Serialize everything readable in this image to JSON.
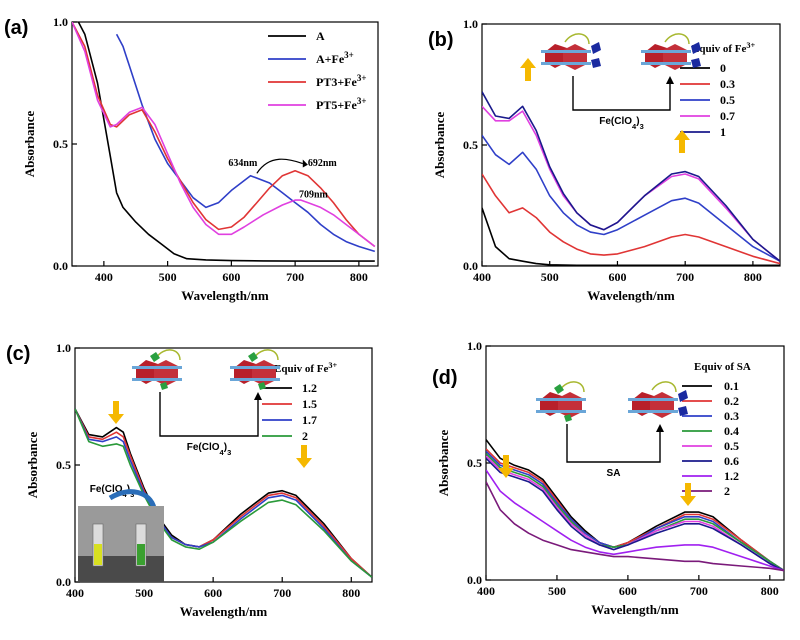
{
  "figure": {
    "panels": [
      "(a)",
      "(b)",
      "(c)",
      "(d)"
    ],
    "arrow_color": "#f5b800"
  },
  "chart_data": [
    {
      "type": "line",
      "panel": "(a)",
      "xlabel": "Wavelength/nm",
      "ylabel": "Absorbance",
      "xlim": [
        350,
        830
      ],
      "ylim": [
        0,
        1.0
      ],
      "xticks": [
        400,
        500,
        600,
        700,
        800
      ],
      "yticks": [
        0.0,
        0.5,
        1.0
      ],
      "legend_position": "top-right",
      "annotations": [
        "634nm",
        "692nm",
        "709nm"
      ],
      "series": [
        {
          "name": "A",
          "color": "#000000",
          "x": [
            350,
            370,
            390,
            410,
            420,
            430,
            450,
            470,
            490,
            510,
            530,
            560,
            600,
            650,
            700,
            750,
            800,
            825
          ],
          "y": [
            1.05,
            0.95,
            0.75,
            0.45,
            0.3,
            0.24,
            0.18,
            0.13,
            0.09,
            0.05,
            0.03,
            0.025,
            0.022,
            0.021,
            0.02,
            0.02,
            0.02,
            0.02
          ]
        },
        {
          "name": "A+Fe3+",
          "color": "#2f3fc8",
          "x": [
            420,
            430,
            440,
            460,
            480,
            500,
            520,
            540,
            560,
            580,
            600,
            630,
            660,
            680,
            700,
            720,
            740,
            760,
            780,
            800,
            825
          ],
          "y": [
            0.95,
            0.9,
            0.82,
            0.66,
            0.52,
            0.42,
            0.35,
            0.28,
            0.24,
            0.26,
            0.31,
            0.37,
            0.34,
            0.3,
            0.26,
            0.22,
            0.17,
            0.13,
            0.1,
            0.08,
            0.06
          ]
        },
        {
          "name": "PT3+Fe3+",
          "color": "#e03535",
          "x": [
            350,
            370,
            390,
            410,
            420,
            440,
            460,
            480,
            500,
            520,
            540,
            560,
            580,
            600,
            620,
            640,
            660,
            680,
            690,
            700,
            720,
            740,
            760,
            780,
            800,
            825
          ],
          "y": [
            1.0,
            0.9,
            0.7,
            0.58,
            0.57,
            0.62,
            0.64,
            0.55,
            0.44,
            0.35,
            0.26,
            0.19,
            0.15,
            0.16,
            0.2,
            0.26,
            0.32,
            0.37,
            0.38,
            0.39,
            0.37,
            0.32,
            0.26,
            0.19,
            0.13,
            0.08
          ]
        },
        {
          "name": "PT5+Fe3+",
          "color": "#e040e0",
          "x": [
            350,
            370,
            390,
            410,
            420,
            440,
            460,
            480,
            500,
            520,
            540,
            560,
            580,
            600,
            620,
            650,
            680,
            700,
            709,
            720,
            740,
            760,
            780,
            800,
            825
          ],
          "y": [
            1.0,
            0.88,
            0.68,
            0.57,
            0.58,
            0.63,
            0.65,
            0.58,
            0.46,
            0.34,
            0.24,
            0.17,
            0.13,
            0.13,
            0.16,
            0.21,
            0.25,
            0.27,
            0.27,
            0.26,
            0.24,
            0.21,
            0.17,
            0.13,
            0.08
          ]
        }
      ]
    },
    {
      "type": "line",
      "panel": "(b)",
      "xlabel": "Wavelength/nm",
      "ylabel": "Absorbance",
      "xlim": [
        400,
        840
      ],
      "ylim": [
        0,
        1.0
      ],
      "xticks": [
        400,
        500,
        600,
        700,
        800
      ],
      "yticks": [
        0.0,
        0.5,
        1.0
      ],
      "legend_title": "Equiv of Fe3+",
      "legend_position": "top-right",
      "reagent": "Fe(ClO4)3",
      "series": [
        {
          "name": "0",
          "color": "#000000",
          "x": [
            400,
            420,
            440,
            460,
            480,
            500,
            540,
            600,
            700,
            800,
            840
          ],
          "y": [
            0.24,
            0.08,
            0.03,
            0.02,
            0.01,
            0.005,
            0.003,
            0.003,
            0.003,
            0.003,
            0.003
          ]
        },
        {
          "name": "0.3",
          "color": "#e03535",
          "x": [
            400,
            420,
            440,
            460,
            480,
            500,
            520,
            540,
            560,
            580,
            600,
            640,
            680,
            700,
            720,
            760,
            800,
            840
          ],
          "y": [
            0.38,
            0.29,
            0.22,
            0.24,
            0.2,
            0.14,
            0.1,
            0.07,
            0.05,
            0.045,
            0.05,
            0.08,
            0.12,
            0.13,
            0.12,
            0.08,
            0.04,
            0.01
          ]
        },
        {
          "name": "0.5",
          "color": "#2f3fc8",
          "x": [
            400,
            420,
            440,
            460,
            480,
            500,
            520,
            540,
            560,
            580,
            600,
            640,
            680,
            700,
            720,
            760,
            800,
            840
          ],
          "y": [
            0.54,
            0.46,
            0.42,
            0.47,
            0.4,
            0.29,
            0.22,
            0.17,
            0.14,
            0.13,
            0.15,
            0.21,
            0.27,
            0.28,
            0.26,
            0.17,
            0.08,
            0.02
          ]
        },
        {
          "name": "0.7",
          "color": "#e040e0",
          "x": [
            400,
            420,
            440,
            460,
            480,
            500,
            520,
            540,
            560,
            580,
            600,
            640,
            680,
            700,
            720,
            760,
            800,
            840
          ],
          "y": [
            0.66,
            0.6,
            0.6,
            0.64,
            0.54,
            0.4,
            0.29,
            0.22,
            0.17,
            0.15,
            0.18,
            0.29,
            0.37,
            0.38,
            0.36,
            0.24,
            0.11,
            0.02
          ]
        },
        {
          "name": "1",
          "color": "#1a1a8c",
          "x": [
            400,
            420,
            440,
            460,
            480,
            500,
            520,
            540,
            560,
            580,
            600,
            640,
            680,
            700,
            720,
            760,
            800,
            840
          ],
          "y": [
            0.72,
            0.62,
            0.61,
            0.66,
            0.56,
            0.41,
            0.3,
            0.22,
            0.17,
            0.15,
            0.18,
            0.29,
            0.38,
            0.39,
            0.37,
            0.25,
            0.11,
            0.02
          ]
        }
      ]
    },
    {
      "type": "line",
      "panel": "(c)",
      "xlabel": "Wavelength/nm",
      "ylabel": "Absorbance",
      "xlim": [
        400,
        830
      ],
      "ylim": [
        0,
        1.0
      ],
      "xticks": [
        400,
        500,
        600,
        700,
        800
      ],
      "yticks": [
        0.0,
        0.5,
        1.0
      ],
      "legend_title": "Equiv of Fe3+",
      "legend_position": "top-right",
      "reagent": "Fe(ClO4)3",
      "series": [
        {
          "name": "1.2",
          "color": "#000000",
          "x": [
            400,
            420,
            440,
            460,
            470,
            480,
            500,
            520,
            540,
            560,
            580,
            600,
            640,
            680,
            700,
            720,
            760,
            800,
            830
          ],
          "y": [
            0.74,
            0.63,
            0.62,
            0.66,
            0.64,
            0.55,
            0.4,
            0.28,
            0.2,
            0.16,
            0.15,
            0.18,
            0.29,
            0.38,
            0.39,
            0.37,
            0.25,
            0.1,
            0.02
          ]
        },
        {
          "name": "1.5",
          "color": "#e03535",
          "x": [
            400,
            420,
            440,
            460,
            470,
            480,
            500,
            520,
            540,
            560,
            580,
            600,
            640,
            680,
            700,
            720,
            760,
            800,
            830
          ],
          "y": [
            0.74,
            0.62,
            0.61,
            0.64,
            0.62,
            0.54,
            0.39,
            0.27,
            0.19,
            0.16,
            0.15,
            0.18,
            0.28,
            0.37,
            0.38,
            0.36,
            0.24,
            0.1,
            0.02
          ]
        },
        {
          "name": "1.7",
          "color": "#2f3fc8",
          "x": [
            400,
            420,
            440,
            460,
            470,
            480,
            500,
            520,
            540,
            560,
            580,
            600,
            640,
            680,
            700,
            720,
            760,
            800,
            830
          ],
          "y": [
            0.74,
            0.61,
            0.6,
            0.62,
            0.6,
            0.52,
            0.38,
            0.27,
            0.19,
            0.16,
            0.15,
            0.17,
            0.27,
            0.36,
            0.37,
            0.35,
            0.23,
            0.09,
            0.02
          ]
        },
        {
          "name": "2",
          "color": "#2a9a3a",
          "x": [
            400,
            420,
            440,
            460,
            470,
            480,
            500,
            520,
            540,
            560,
            580,
            600,
            640,
            680,
            700,
            720,
            760,
            800,
            830
          ],
          "y": [
            0.74,
            0.6,
            0.58,
            0.59,
            0.58,
            0.5,
            0.37,
            0.26,
            0.18,
            0.15,
            0.14,
            0.17,
            0.26,
            0.34,
            0.35,
            0.33,
            0.22,
            0.09,
            0.02
          ]
        }
      ]
    },
    {
      "type": "line",
      "panel": "(d)",
      "xlabel": "Wavelength/nm",
      "ylabel": "Absorbance",
      "xlim": [
        400,
        820
      ],
      "ylim": [
        0,
        1.0
      ],
      "xticks": [
        400,
        500,
        600,
        700,
        800
      ],
      "yticks": [
        0.0,
        0.5,
        1.0
      ],
      "legend_title": "Equiv of SA",
      "legend_position": "top-right",
      "reagent": "SA",
      "series": [
        {
          "name": "0.1",
          "color": "#000000",
          "x": [
            400,
            420,
            440,
            460,
            480,
            500,
            520,
            540,
            560,
            580,
            600,
            640,
            680,
            700,
            720,
            760,
            800,
            820
          ],
          "y": [
            0.6,
            0.52,
            0.49,
            0.47,
            0.43,
            0.35,
            0.27,
            0.21,
            0.16,
            0.14,
            0.16,
            0.23,
            0.29,
            0.29,
            0.27,
            0.17,
            0.08,
            0.04
          ]
        },
        {
          "name": "0.2",
          "color": "#e03535",
          "x": [
            400,
            420,
            440,
            460,
            480,
            500,
            520,
            540,
            560,
            580,
            600,
            640,
            680,
            700,
            720,
            760,
            800,
            820
          ],
          "y": [
            0.56,
            0.5,
            0.48,
            0.46,
            0.42,
            0.34,
            0.26,
            0.2,
            0.16,
            0.14,
            0.16,
            0.22,
            0.28,
            0.28,
            0.26,
            0.17,
            0.08,
            0.04
          ]
        },
        {
          "name": "0.3",
          "color": "#2f3fc8",
          "x": [
            400,
            420,
            440,
            460,
            480,
            500,
            520,
            540,
            560,
            580,
            600,
            640,
            680,
            700,
            720,
            760,
            800,
            820
          ],
          "y": [
            0.55,
            0.49,
            0.47,
            0.45,
            0.41,
            0.33,
            0.26,
            0.2,
            0.16,
            0.14,
            0.15,
            0.22,
            0.27,
            0.27,
            0.25,
            0.16,
            0.08,
            0.04
          ]
        },
        {
          "name": "0.4",
          "color": "#2a9a3a",
          "x": [
            400,
            420,
            440,
            460,
            480,
            500,
            520,
            540,
            560,
            580,
            600,
            640,
            680,
            700,
            720,
            760,
            800,
            820
          ],
          "y": [
            0.54,
            0.48,
            0.46,
            0.44,
            0.4,
            0.32,
            0.25,
            0.19,
            0.15,
            0.14,
            0.15,
            0.21,
            0.26,
            0.26,
            0.24,
            0.16,
            0.08,
            0.04
          ]
        },
        {
          "name": "0.5",
          "color": "#e040e0",
          "x": [
            400,
            420,
            440,
            460,
            480,
            500,
            520,
            540,
            560,
            580,
            600,
            640,
            680,
            700,
            720,
            760,
            800,
            820
          ],
          "y": [
            0.53,
            0.47,
            0.45,
            0.43,
            0.39,
            0.31,
            0.24,
            0.19,
            0.15,
            0.13,
            0.15,
            0.21,
            0.25,
            0.25,
            0.23,
            0.15,
            0.07,
            0.04
          ]
        },
        {
          "name": "0.6",
          "color": "#1a1a8c",
          "x": [
            400,
            420,
            440,
            460,
            480,
            500,
            520,
            540,
            560,
            580,
            600,
            640,
            680,
            700,
            720,
            760,
            800,
            820
          ],
          "y": [
            0.52,
            0.46,
            0.44,
            0.42,
            0.38,
            0.3,
            0.23,
            0.18,
            0.15,
            0.13,
            0.15,
            0.2,
            0.24,
            0.24,
            0.22,
            0.15,
            0.07,
            0.04
          ]
        },
        {
          "name": "1.2",
          "color": "#a020f0",
          "x": [
            400,
            420,
            440,
            460,
            480,
            500,
            520,
            540,
            560,
            580,
            600,
            640,
            680,
            700,
            720,
            760,
            800,
            820
          ],
          "y": [
            0.47,
            0.38,
            0.33,
            0.29,
            0.25,
            0.21,
            0.17,
            0.14,
            0.12,
            0.11,
            0.12,
            0.14,
            0.15,
            0.15,
            0.14,
            0.1,
            0.06,
            0.04
          ]
        },
        {
          "name": "2",
          "color": "#7a1a7a",
          "x": [
            400,
            420,
            440,
            460,
            480,
            500,
            520,
            540,
            560,
            580,
            600,
            640,
            680,
            700,
            720,
            760,
            800,
            820
          ],
          "y": [
            0.42,
            0.3,
            0.24,
            0.2,
            0.17,
            0.15,
            0.13,
            0.12,
            0.11,
            0.1,
            0.1,
            0.09,
            0.08,
            0.08,
            0.07,
            0.06,
            0.05,
            0.04
          ]
        }
      ]
    }
  ]
}
